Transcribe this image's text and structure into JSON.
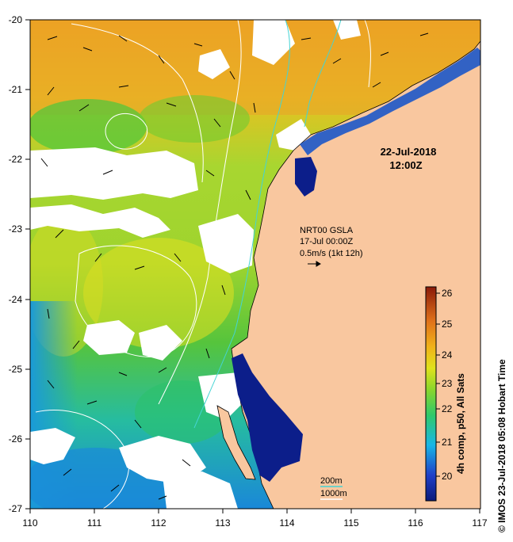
{
  "map": {
    "date_line1": "22-Jul-2018",
    "date_line2": "12:00Z",
    "current_info": [
      "NRT00 GSLA",
      "17-Jul 00:00Z",
      "0.5m/s (1kt 12h)"
    ],
    "depth_legend": [
      "200m",
      "1000m"
    ],
    "colorbar_title": "4h comp, p50, All Sats",
    "credit": "© IMOS 23-Jul-2018 05:08 Hobart Time",
    "colorbar_ticks": [
      "20",
      "21",
      "22",
      "23",
      "24",
      "25",
      "26"
    ],
    "x_ticks": [
      "110",
      "111",
      "112",
      "113",
      "114",
      "115",
      "116",
      "117"
    ],
    "y_ticks": [
      "-20",
      "-21",
      "-22",
      "-23",
      "-24",
      "-25",
      "-26",
      "-27"
    ],
    "colors": {
      "land": "#f9c79f",
      "cloud": "#ffffff",
      "contour_200m": "#44d4d4",
      "contour_1000m": "#ffffff"
    }
  }
}
